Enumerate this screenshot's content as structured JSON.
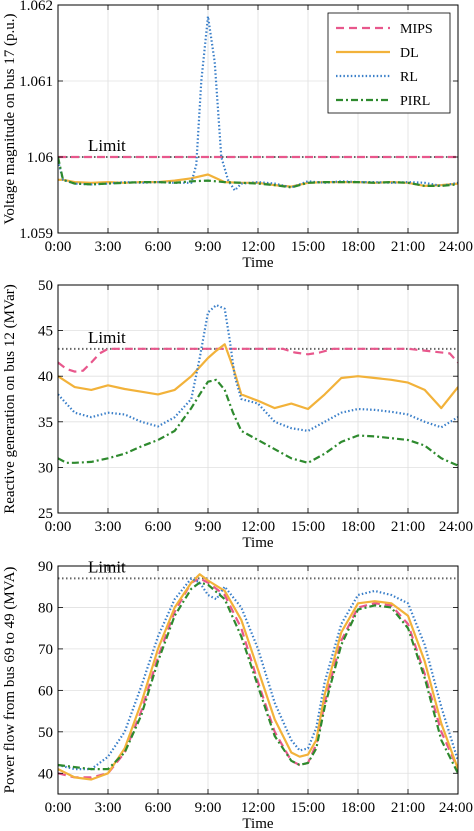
{
  "chart_data": [
    {
      "type": "line",
      "ylabel": "Voltage magnitude on bus 17 (p.u.)",
      "xlabel": "Time",
      "ylim": [
        1.059,
        1.062
      ],
      "yticks": [
        1.059,
        1.06,
        1.061,
        1.062
      ],
      "ytick_labels": [
        "1.059",
        "1.06",
        "1.061",
        "1.062"
      ],
      "xticks": [
        0,
        3,
        6,
        9,
        12,
        15,
        18,
        21,
        24
      ],
      "xtick_labels": [
        "0:00",
        "3:00",
        "6:00",
        "9:00",
        "12:00",
        "15:00",
        "18:00",
        "21:00",
        "24:00"
      ],
      "xlim": [
        0,
        24
      ],
      "grid": true,
      "limit": 1.06,
      "limit_label": "Limit",
      "legend": "top-right",
      "series": [
        {
          "name": "MIPS",
          "x": [
            0,
            3,
            6,
            9,
            12,
            15,
            18,
            21,
            24
          ],
          "values": [
            1.06,
            1.06,
            1.06,
            1.06,
            1.06,
            1.06,
            1.06,
            1.06,
            1.06
          ]
        },
        {
          "name": "DL",
          "x": [
            0,
            0.3,
            1,
            2,
            3,
            4,
            5,
            6,
            7,
            8,
            9,
            10,
            11,
            12,
            13,
            14,
            15,
            16,
            17,
            18,
            19,
            20,
            21,
            22,
            23,
            24
          ],
          "values": [
            1.0597,
            1.0597,
            1.05967,
            1.05966,
            1.05967,
            1.05966,
            1.05967,
            1.05967,
            1.05969,
            1.05972,
            1.05977,
            1.05967,
            1.05966,
            1.05966,
            1.05963,
            1.05961,
            1.05966,
            1.05967,
            1.05967,
            1.05967,
            1.05966,
            1.05967,
            1.05966,
            1.05962,
            1.05963,
            1.05965
          ]
        },
        {
          "name": "RL",
          "x": [
            0,
            0.3,
            1,
            2,
            3,
            4,
            5,
            6,
            7,
            8,
            8.3,
            8.6,
            9,
            9.4,
            9.8,
            10.2,
            10.6,
            11,
            12,
            13,
            14,
            15,
            16,
            17,
            18,
            19,
            20,
            21,
            22,
            23,
            24
          ],
          "values": [
            1.05995,
            1.0597,
            1.05965,
            1.05964,
            1.05965,
            1.05967,
            1.05966,
            1.05967,
            1.05966,
            1.05966,
            1.0599,
            1.061,
            1.06185,
            1.06125,
            1.06,
            1.0597,
            1.05956,
            1.05965,
            1.05967,
            1.05965,
            1.0596,
            1.05968,
            1.05966,
            1.05968,
            1.05967,
            1.05967,
            1.05966,
            1.05967,
            1.05966,
            1.05962,
            1.05966
          ]
        },
        {
          "name": "PIRL",
          "x": [
            0,
            0.3,
            1,
            2,
            3,
            4,
            5,
            6,
            7,
            8,
            9,
            10,
            11,
            12,
            13,
            14,
            15,
            16,
            17,
            18,
            19,
            20,
            21,
            22,
            23,
            24
          ],
          "values": [
            1.06,
            1.0597,
            1.05965,
            1.05964,
            1.05965,
            1.05966,
            1.05967,
            1.05967,
            1.05966,
            1.05968,
            1.05969,
            1.05967,
            1.05966,
            1.05965,
            1.05963,
            1.0596,
            1.05966,
            1.05967,
            1.05967,
            1.05967,
            1.05966,
            1.05967,
            1.05966,
            1.05962,
            1.05962,
            1.05964
          ]
        }
      ]
    },
    {
      "type": "line",
      "ylabel": "Reactive generation on bus 12 (MVar)",
      "xlabel": "Time",
      "ylim": [
        25,
        50
      ],
      "yticks": [
        25,
        30,
        35,
        40,
        45,
        50
      ],
      "ytick_labels": [
        "25",
        "30",
        "35",
        "40",
        "45",
        "50"
      ],
      "xticks": [
        0,
        3,
        6,
        9,
        12,
        15,
        18,
        21,
        24
      ],
      "xtick_labels": [
        "0:00",
        "3:00",
        "6:00",
        "9:00",
        "12:00",
        "15:00",
        "18:00",
        "21:00",
        "24:00"
      ],
      "xlim": [
        0,
        24
      ],
      "grid": true,
      "limit": 43,
      "limit_label": "Limit",
      "series": [
        {
          "name": "MIPS",
          "x": [
            0,
            0.5,
            1,
            1.5,
            2,
            2.5,
            3,
            4,
            6,
            9,
            12,
            13.5,
            14.2,
            15,
            15.7,
            16.5,
            18,
            21,
            23.5,
            24
          ],
          "values": [
            41.5,
            40.8,
            40.5,
            40.6,
            41.5,
            42.5,
            43,
            43,
            43,
            43,
            43,
            43,
            42.6,
            42.4,
            42.6,
            43,
            43,
            43,
            42.5,
            41.5
          ]
        },
        {
          "name": "DL",
          "x": [
            0,
            1,
            2,
            3,
            4,
            5,
            6,
            7,
            8,
            9,
            9.5,
            10,
            10.5,
            11,
            12,
            13,
            14,
            15,
            16,
            17,
            18,
            19,
            20,
            21,
            22,
            23,
            24
          ],
          "values": [
            40,
            38.8,
            38.5,
            39,
            38.6,
            38.3,
            38,
            38.5,
            40,
            42,
            42.8,
            43.5,
            41,
            38,
            37.3,
            36.5,
            37,
            36.4,
            38,
            39.8,
            40,
            39.8,
            39.6,
            39.3,
            38.5,
            36.5,
            38.8
          ]
        },
        {
          "name": "RL",
          "x": [
            0,
            1,
            2,
            3,
            4,
            5,
            6,
            7,
            8,
            8.5,
            9,
            9.5,
            10,
            10.3,
            10.6,
            11,
            12,
            13,
            14,
            15,
            16,
            17,
            18,
            19,
            20,
            21,
            22,
            23,
            24
          ],
          "values": [
            38,
            36,
            35.5,
            36,
            35.8,
            35,
            34.5,
            35.5,
            37.5,
            42,
            47,
            47.8,
            47.4,
            44,
            40,
            37.5,
            37,
            35,
            34.3,
            34,
            35,
            36,
            36.4,
            36.3,
            36.1,
            35.8,
            35,
            34.4,
            35.5
          ]
        },
        {
          "name": "PIRL",
          "x": [
            0,
            0.5,
            1,
            2,
            3,
            4,
            5,
            6,
            7,
            8,
            8.5,
            9,
            9.5,
            10,
            10.5,
            11,
            12,
            13,
            14,
            15,
            16,
            17,
            18,
            19,
            20,
            21,
            22,
            23,
            24
          ],
          "values": [
            31,
            30.5,
            30.5,
            30.6,
            31,
            31.5,
            32.3,
            33,
            34,
            36.5,
            38,
            39.4,
            39.6,
            38.5,
            36,
            34,
            33,
            32,
            31,
            30.5,
            31.5,
            32.8,
            33.5,
            33.4,
            33.2,
            33,
            32.4,
            31,
            30.2
          ]
        }
      ]
    },
    {
      "type": "line",
      "ylabel": "Power flow from bus 69 to 49 (MVA)",
      "xlabel": "Time",
      "ylim": [
        35,
        90
      ],
      "yticks": [
        40,
        50,
        60,
        70,
        80,
        90
      ],
      "ytick_labels": [
        "40",
        "50",
        "60",
        "70",
        "80",
        "90"
      ],
      "xticks": [
        0,
        3,
        6,
        9,
        12,
        15,
        18,
        21,
        24
      ],
      "xtick_labels": [
        "0:00",
        "3:00",
        "6:00",
        "9:00",
        "12:00",
        "15:00",
        "18:00",
        "21:00",
        "24:00"
      ],
      "xlim": [
        0,
        24
      ],
      "grid": true,
      "limit": 87,
      "limit_label": "Limit",
      "series": [
        {
          "name": "MIPS",
          "x": [
            0,
            1,
            2,
            3,
            4,
            5,
            6,
            7,
            8,
            8.5,
            9,
            10,
            11,
            12,
            13,
            14,
            14.5,
            15,
            15.5,
            16,
            17,
            18,
            19,
            20,
            21,
            22,
            23,
            24
          ],
          "values": [
            40,
            39,
            39,
            40,
            45,
            55,
            68,
            79,
            86,
            87,
            86,
            83,
            75,
            62,
            50,
            43,
            42,
            42.5,
            47,
            57,
            72,
            80,
            81,
            80.5,
            76,
            64,
            50,
            41
          ]
        },
        {
          "name": "DL",
          "x": [
            0,
            1,
            2,
            3,
            4,
            5,
            6,
            7,
            8,
            8.5,
            9,
            10,
            11,
            12,
            13,
            14,
            14.5,
            15,
            15.5,
            16,
            17,
            18,
            19,
            20,
            21,
            22,
            23,
            24
          ],
          "values": [
            41,
            39,
            38.5,
            40,
            46,
            57,
            70,
            80,
            86,
            88,
            86.5,
            84,
            77,
            65,
            53,
            45,
            44,
            44.5,
            48,
            59,
            74,
            81,
            81.5,
            81,
            78,
            67,
            52,
            41
          ]
        },
        {
          "name": "RL",
          "x": [
            0,
            1,
            2,
            3,
            4,
            5,
            6,
            7,
            8,
            8.5,
            9,
            9.5,
            10,
            11,
            12,
            13,
            14,
            14.5,
            15,
            15.5,
            16,
            17,
            18,
            19,
            20,
            21,
            22,
            23,
            24
          ],
          "values": [
            42,
            41,
            41,
            44,
            50,
            61,
            73,
            82,
            87,
            86,
            83,
            82,
            85,
            80,
            70,
            57,
            48,
            45.5,
            46,
            51,
            62,
            76,
            83,
            84,
            83,
            81,
            71,
            56,
            43
          ]
        },
        {
          "name": "PIRL",
          "x": [
            0,
            1,
            2,
            3,
            4,
            5,
            6,
            7,
            8,
            8.5,
            9,
            10,
            11,
            12,
            13,
            14,
            14.5,
            15,
            15.5,
            16,
            17,
            18,
            19,
            20,
            21,
            22,
            23,
            24
          ],
          "values": [
            42,
            41.5,
            41,
            41,
            45,
            54,
            67,
            78,
            84.5,
            86,
            85.5,
            82,
            73,
            61,
            49,
            43,
            42,
            42.5,
            46,
            56,
            71,
            79.5,
            80.5,
            80,
            75,
            63,
            48,
            40
          ]
        }
      ]
    }
  ],
  "legend_items": [
    {
      "name": "MIPS",
      "color": "#e8578c",
      "dash": "8 5",
      "width": 2.2
    },
    {
      "name": "DL",
      "color": "#f2b23a",
      "dash": "",
      "width": 2.2
    },
    {
      "name": "RL",
      "color": "#3a7fc9",
      "dash": "1.5 2.2",
      "width": 2.2
    },
    {
      "name": "PIRL",
      "color": "#2e8a2e",
      "dash": "7 3 2 3",
      "width": 2.2
    }
  ]
}
